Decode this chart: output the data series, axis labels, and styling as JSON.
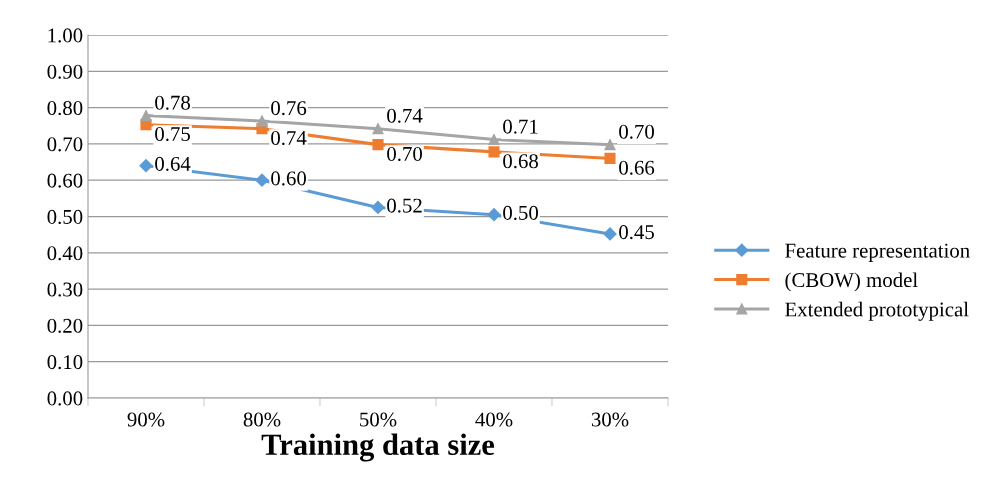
{
  "chart_data": {
    "type": "line",
    "xlabel": "Training data size",
    "categories": [
      "90%",
      "80%",
      "50%",
      "40%",
      "30%"
    ],
    "series": [
      {
        "name": "Feature representation",
        "color": "#5b9bd5",
        "marker": "diamond",
        "values": [
          0.64,
          0.6,
          0.525,
          0.505,
          0.452
        ],
        "value_labels": [
          "0.64",
          "0.60",
          "0.52",
          "0.50",
          "0.45"
        ]
      },
      {
        "name": "(CBOW) model",
        "color": "#ed7d31",
        "marker": "square",
        "values": [
          0.753,
          0.742,
          0.698,
          0.678,
          0.66
        ],
        "value_labels": [
          "0.75",
          "0.74",
          "0.70",
          "0.68",
          "0.66"
        ]
      },
      {
        "name": "Extended prototypical",
        "color": "#a5a5a5",
        "marker": "triangle",
        "values": [
          0.778,
          0.763,
          0.742,
          0.712,
          0.698
        ],
        "value_labels": [
          "0.78",
          "0.76",
          "0.74",
          "0.71",
          "0.70"
        ]
      }
    ],
    "ylim": [
      0,
      1
    ],
    "yticks": [
      {
        "value": 0,
        "label": "0.00"
      },
      {
        "value": 0.1,
        "label": "0.10"
      },
      {
        "value": 0.2,
        "label": "0.20"
      },
      {
        "value": 0.3,
        "label": "0.30"
      },
      {
        "value": 0.4,
        "label": "0.40"
      },
      {
        "value": 0.5,
        "label": "0.50"
      },
      {
        "value": 0.6,
        "label": "0.60"
      },
      {
        "value": 0.7,
        "label": "0.70"
      },
      {
        "value": 0.8,
        "label": "0.80"
      },
      {
        "value": 0.9,
        "label": "0.90"
      },
      {
        "value": 1,
        "label": "1.00"
      }
    ],
    "grid": "y",
    "legend": "right",
    "line_style": "solid"
  }
}
